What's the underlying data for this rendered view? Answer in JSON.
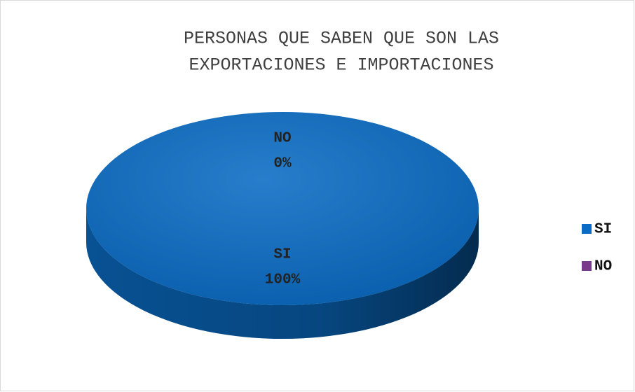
{
  "chart_data": {
    "type": "pie",
    "title": [
      "PERSONAS QUE SABEN QUE SON LAS",
      "EXPORTACIONES E IMPORTACIONES"
    ],
    "categories": [
      "SI",
      "NO"
    ],
    "values": [
      100,
      0
    ],
    "value_labels": [
      "100%",
      "0%"
    ],
    "colors": [
      "#0a6cc4",
      "#7a3a8c"
    ],
    "legend": "right"
  }
}
